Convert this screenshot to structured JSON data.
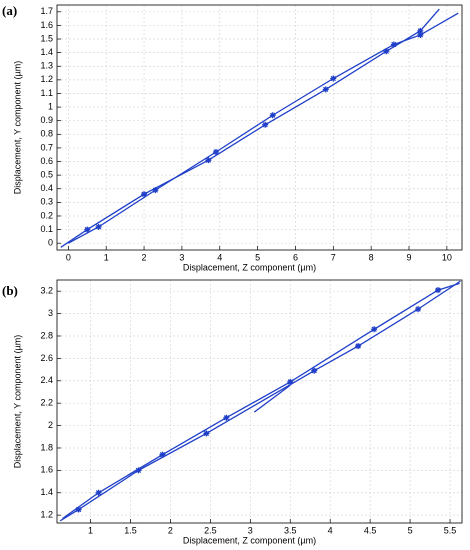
{
  "chart_data": [
    {
      "type": "line",
      "label": "(a)",
      "x_label": "Displacement, Z component (µm)",
      "y_label": "Displacement, Y component (µm)",
      "xlim": [
        -0.3,
        10.4
      ],
      "ylim": [
        -0.05,
        1.75
      ],
      "xticks": [
        0,
        1,
        2,
        3,
        4,
        5,
        6,
        7,
        8,
        9,
        10
      ],
      "yticks": [
        0,
        0.1,
        0.2,
        0.3,
        0.4,
        0.5,
        0.6,
        0.7,
        0.8,
        0.9,
        1,
        1.1,
        1.2,
        1.3,
        1.4,
        1.5,
        1.6,
        1.7
      ],
      "grid": true,
      "series": [
        {
          "color": "#1f3fc8",
          "x": [
            -0.2,
            0.5,
            2,
            3.7,
            5.2,
            6.8,
            8.4,
            9.3,
            9.8
          ],
          "values": [
            -0.03,
            0.1,
            0.36,
            0.61,
            0.87,
            1.13,
            1.41,
            1.56,
            1.72
          ]
        },
        {
          "color": "#1f3fc8",
          "x": [
            0,
            0.8,
            2.3,
            3.9,
            5.4,
            7,
            8.6,
            9.3,
            10.3
          ],
          "values": [
            0,
            0.12,
            0.39,
            0.67,
            0.94,
            1.21,
            1.46,
            1.53,
            1.69
          ]
        }
      ]
    },
    {
      "type": "line",
      "label": "(b)",
      "x_label": "Displacement, Z component (µm)",
      "y_label": "Displacement, Y component (µm)",
      "xlim": [
        0.58,
        5.65
      ],
      "ylim": [
        1.13,
        3.3
      ],
      "xticks": [
        1,
        1.5,
        2,
        2.5,
        3,
        3.5,
        4,
        4.5,
        5,
        5.5
      ],
      "yticks": [
        1.2,
        1.4,
        1.6,
        1.8,
        2,
        2.2,
        2.4,
        2.6,
        2.8,
        3,
        3.2
      ],
      "grid": true,
      "series": [
        {
          "color": "#1f3fc8",
          "x": [
            0.62,
            0.85,
            1.6,
            2.45,
            3.8,
            4.35,
            5.1,
            5.63
          ],
          "values": [
            1.15,
            1.25,
            1.6,
            1.93,
            2.49,
            2.71,
            3.04,
            3.29
          ]
        },
        {
          "color": "#1f3fc8",
          "x": [
            0.65,
            1.1,
            1.9,
            2.7,
            3.5,
            4.55,
            5.35,
            5.62
          ],
          "values": [
            1.17,
            1.4,
            1.74,
            2.07,
            2.39,
            2.86,
            3.21,
            3.27
          ]
        },
        {
          "color": "#1f3fc8",
          "x": [
            3.05,
            3.5
          ],
          "values": [
            2.12,
            2.36
          ]
        }
      ]
    }
  ]
}
